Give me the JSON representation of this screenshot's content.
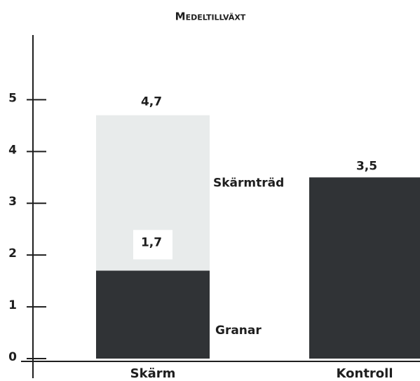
{
  "chart_data": {
    "type": "stacked_bar",
    "title": "Medeltillväxt",
    "categories": [
      "Skärm",
      "Kontroll"
    ],
    "series": [
      {
        "name": "Granar",
        "color": "#303336",
        "values": [
          1.7,
          3.5
        ],
        "value_labels": [
          "1,7",
          "3,5"
        ]
      },
      {
        "name": "Skärmträd",
        "color": "#e8ebeb",
        "values": [
          3.0,
          null
        ]
      }
    ],
    "totals": [
      4.7,
      null
    ],
    "total_labels": [
      "4,7",
      null
    ],
    "ylim": [
      0,
      6.25
    ],
    "yticks": [
      0,
      1,
      2,
      3,
      4,
      5
    ],
    "grid": false
  }
}
